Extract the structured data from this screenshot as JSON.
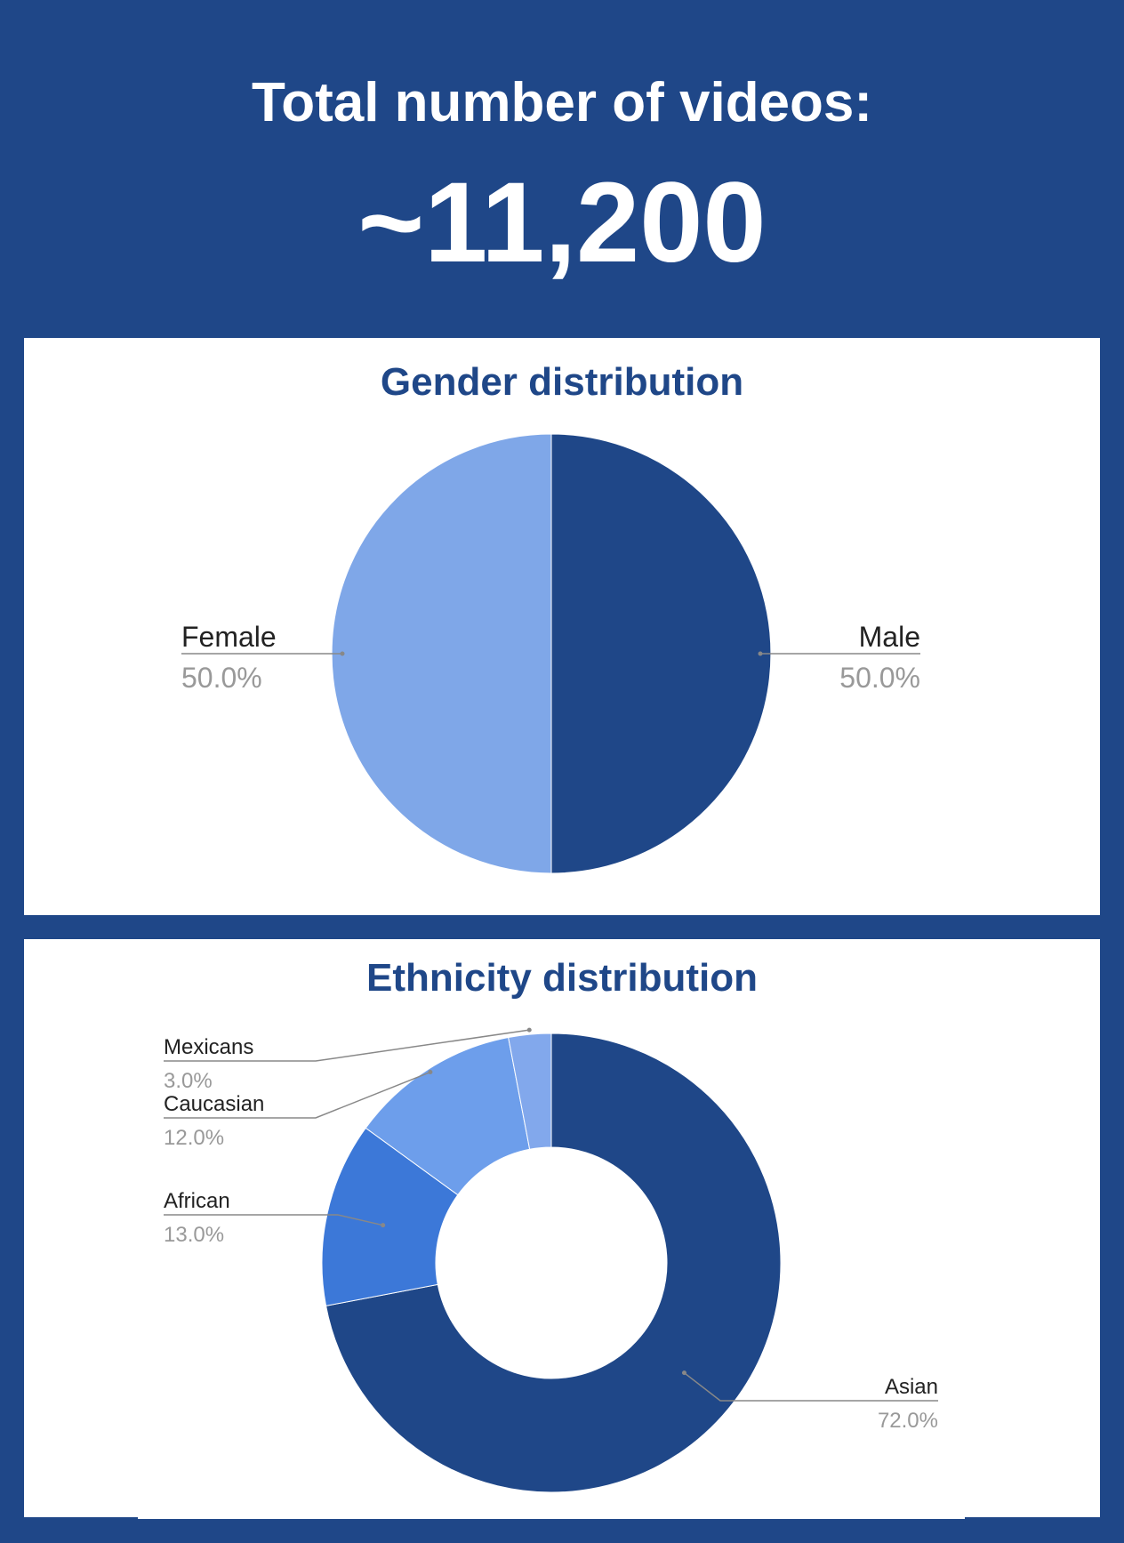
{
  "header": {
    "title": "Total number of videos:",
    "count": "~11,200"
  },
  "colors": {
    "background": "#1f4788",
    "panel": "#ffffff",
    "title_text": "#1f4788",
    "label_text": "#222222",
    "pct_text": "#999999",
    "leader": "#888888"
  },
  "chart_data": [
    {
      "type": "pie",
      "title": "Gender distribution",
      "series": [
        {
          "name": "Male",
          "value": 50.0,
          "label": "50.0%",
          "color": "#1f4788"
        },
        {
          "name": "Female",
          "value": 50.0,
          "label": "50.0%",
          "color": "#7fa7e8"
        }
      ]
    },
    {
      "type": "pie",
      "donut": true,
      "title": "Ethnicity distribution",
      "series": [
        {
          "name": "Asian",
          "value": 72.0,
          "label": "72.0%",
          "color": "#1f4788"
        },
        {
          "name": "African",
          "value": 13.0,
          "label": "13.0%",
          "color": "#3c78d8"
        },
        {
          "name": "Caucasian",
          "value": 12.0,
          "label": "12.0%",
          "color": "#6d9eeb"
        },
        {
          "name": "Mexicans",
          "value": 3.0,
          "label": "3.0%",
          "color": "#82a8ec"
        }
      ]
    }
  ]
}
